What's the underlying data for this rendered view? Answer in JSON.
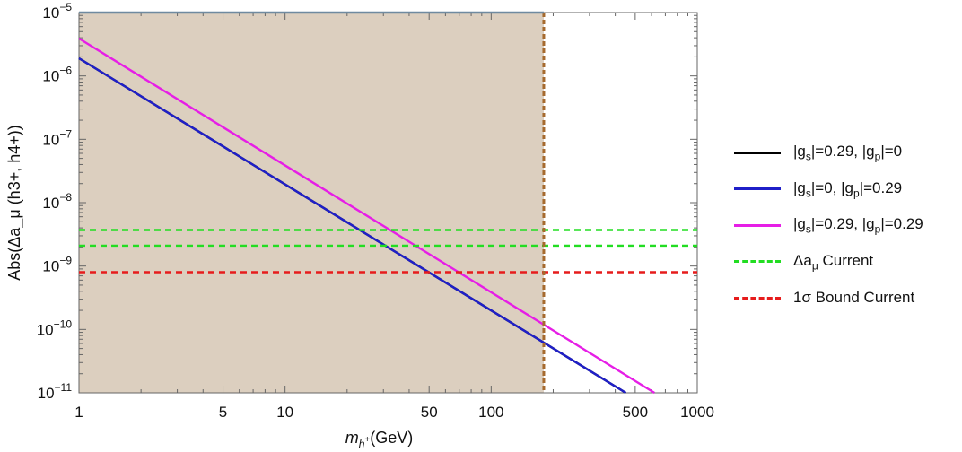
{
  "chart_data": {
    "type": "line",
    "x_scale": "log",
    "y_scale": "log",
    "xlim": [
      1,
      1000
    ],
    "ylim": [
      1e-11,
      1e-05
    ],
    "xlabel": "m_{h+}(GeV)",
    "xlabel_parts": {
      "base": "m",
      "sub": "h",
      "subsup": "+",
      "rest": "(GeV)"
    },
    "ylabel": "Abs(Δa_μ (h3+, h4+))",
    "x_ticks": [
      {
        "value": 1,
        "label": "1"
      },
      {
        "value": 5,
        "label": "5"
      },
      {
        "value": 10,
        "label": "10"
      },
      {
        "value": 50,
        "label": "50"
      },
      {
        "value": 100,
        "label": "100"
      },
      {
        "value": 500,
        "label": "500"
      },
      {
        "value": 1000,
        "label": "1000"
      }
    ],
    "y_ticks": [
      {
        "exp": -5,
        "base": "10",
        "sup": "−5"
      },
      {
        "exp": -6,
        "base": "10",
        "sup": "−6"
      },
      {
        "exp": -7,
        "base": "10",
        "sup": "−7"
      },
      {
        "exp": -8,
        "base": "10",
        "sup": "−8"
      },
      {
        "exp": -9,
        "base": "10",
        "sup": "−9"
      },
      {
        "exp": -10,
        "base": "10",
        "sup": "−10"
      },
      {
        "exp": -11,
        "base": "10",
        "sup": "−11"
      }
    ],
    "excluded_region": {
      "x_min": 1,
      "x_max": 180,
      "y_min": 1e-11,
      "y_max": 1e-05,
      "color": "#dccfbf",
      "boundary_color": "#a66a2e"
    },
    "series": [
      {
        "name": "|g_s|=0.29, |g_p|=0",
        "label_parts": [
          "|g",
          "s",
          "|=0.29, |g",
          "p",
          "|=0"
        ],
        "color": "#000000",
        "style": "solid",
        "x": [
          1,
          450
        ],
        "y": [
          1.9e-06,
          1e-11
        ]
      },
      {
        "name": "|g_s|=0, |g_p|=0.29",
        "label_parts": [
          "|g",
          "s",
          "|=0, |g",
          "p",
          "|=0.29"
        ],
        "color": "#1f1fc8",
        "style": "solid",
        "x": [
          1,
          450
        ],
        "y": [
          1.9e-06,
          1e-11
        ]
      },
      {
        "name": "|g_s|=0.29, |g_p|=0.29",
        "label_parts": [
          "|g",
          "s",
          "|=0.29, |g",
          "p",
          "|=0.29"
        ],
        "color": "#e61ee6",
        "style": "solid",
        "x": [
          1,
          620
        ],
        "y": [
          3.9e-06,
          1e-11
        ]
      },
      {
        "name": "Δa_μ Current",
        "label_parts": [
          "Δa",
          "μ",
          " Current",
          "",
          ""
        ],
        "color": "#22dd22",
        "style": "dashed",
        "x": [
          1,
          1000
        ],
        "y": [
          3.7e-09,
          3.7e-09
        ],
        "y2": 2.1e-09
      },
      {
        "name": "1σ Bound Current",
        "label_parts": [
          "1σ Bound Current",
          "",
          "",
          "",
          ""
        ],
        "color": "#e61c1c",
        "style": "dashed",
        "x": [
          1,
          1000
        ],
        "y": [
          8e-10,
          8e-10
        ]
      }
    ]
  }
}
